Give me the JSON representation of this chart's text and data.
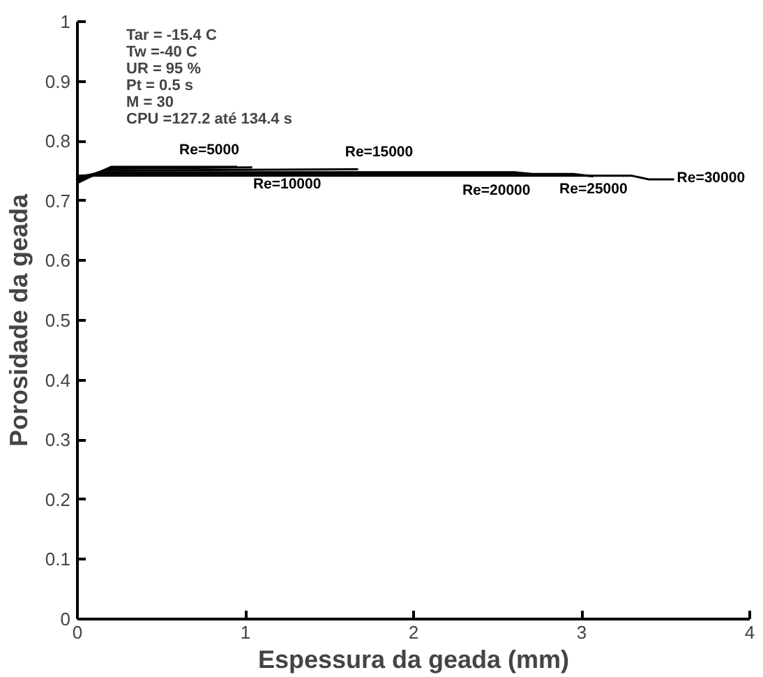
{
  "chart_data": {
    "type": "line",
    "xlabel": "Espessura da geada (mm)",
    "ylabel": "Porosidade da geada",
    "xlim": [
      0,
      4
    ],
    "ylim": [
      0,
      1
    ],
    "xticks": [
      0,
      1,
      2,
      3,
      4
    ],
    "yticks": [
      0,
      0.1,
      0.2,
      0.3,
      0.4,
      0.5,
      0.6,
      0.7,
      0.8,
      0.9,
      1
    ],
    "grid": false,
    "legend": false,
    "marker": "none",
    "line_style": "solid",
    "series": [
      {
        "name": "Re=5000",
        "color": "#000000",
        "x": [
          0,
          0.2,
          0.95
        ],
        "values": [
          0.73,
          0.757,
          0.757
        ]
      },
      {
        "name": "Re=10000",
        "color": "#000000",
        "x": [
          0,
          0.18,
          1.04
        ],
        "values": [
          0.733,
          0.754,
          0.756
        ]
      },
      {
        "name": "Re=15000",
        "color": "#000000",
        "x": [
          0,
          0.16,
          1.67
        ],
        "values": [
          0.736,
          0.751,
          0.753
        ]
      },
      {
        "name": "Re=20000",
        "color": "#000000",
        "x": [
          0,
          0.14,
          2.6,
          2.7
        ],
        "values": [
          0.739,
          0.748,
          0.748,
          0.745
        ]
      },
      {
        "name": "Re=25000",
        "color": "#000000",
        "x": [
          0,
          0.12,
          2.95,
          3.07
        ],
        "values": [
          0.741,
          0.745,
          0.745,
          0.741
        ]
      },
      {
        "name": "Re=30000",
        "color": "#000000",
        "x": [
          0,
          0.1,
          3.3,
          3.4,
          3.55
        ],
        "values": [
          0.742,
          0.742,
          0.742,
          0.736,
          0.736
        ]
      }
    ],
    "annotations": [
      "Tar = -15.4 C\nTw =-40 C\nUR = 95 %\nPt = 0.5 s\nM = 30\nCPU =127.2 até 134.4 s"
    ]
  }
}
